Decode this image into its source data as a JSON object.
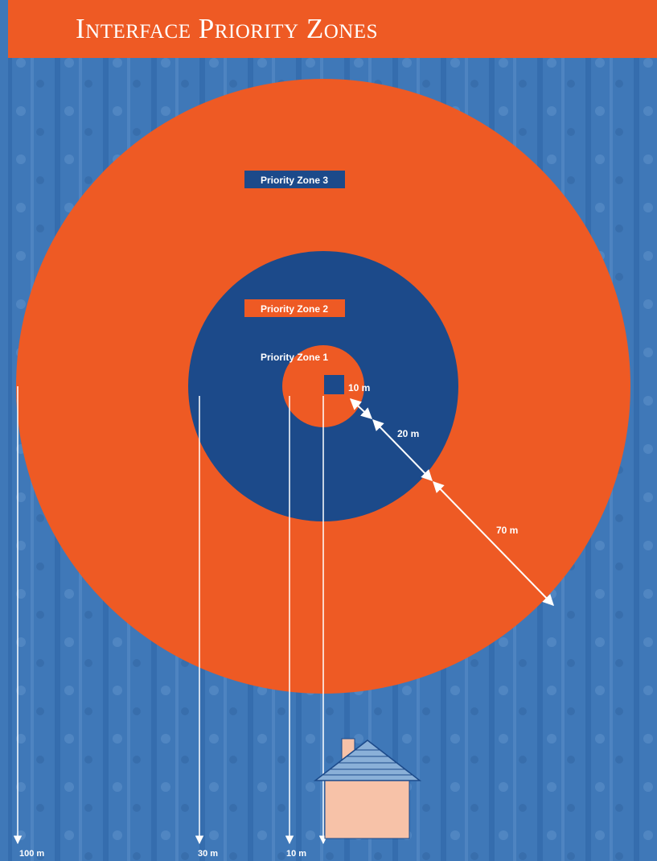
{
  "title": "Interface Priority Zones",
  "zones": [
    {
      "label": "Priority Zone 3",
      "radius_m": 100
    },
    {
      "label": "Priority Zone 2",
      "radius_m": 30
    },
    {
      "label": "Priority Zone 1",
      "radius_m": 10
    }
  ],
  "dimensions": {
    "zone1_width": "10 m",
    "zone2_width": "20 m",
    "zone3_width": "70 m"
  },
  "radius_markers": [
    "100 m",
    "30 m",
    "10 m"
  ],
  "colors": {
    "orange": "#ee5a24",
    "navy": "#1c4a8a",
    "background_blue": "#3f78b8",
    "house": "#f7c2a8",
    "roof": "#8ab0d8"
  },
  "icons": [
    "house-icon"
  ]
}
